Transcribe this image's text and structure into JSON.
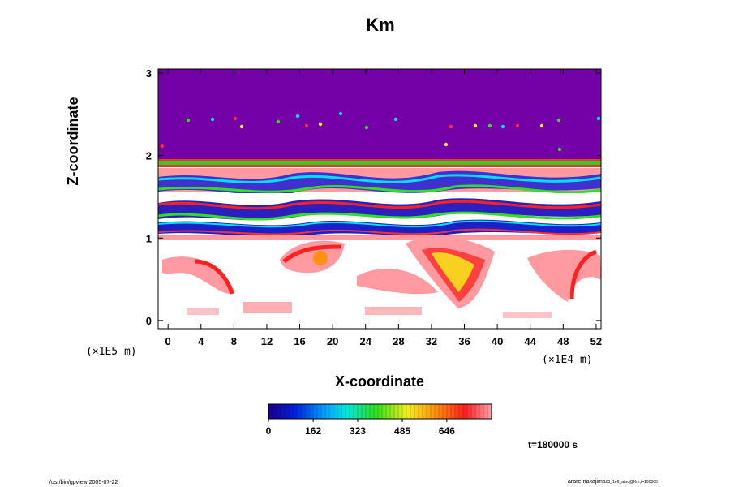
{
  "chart_data": {
    "type": "heatmap",
    "title": "Km",
    "xlabel": "X-coordinate",
    "ylabel": "Z-coordinate",
    "x_unit": "(×1E4 m)",
    "y_unit": "(×1E5 m)",
    "x_ticks": [
      0,
      4,
      8,
      12,
      16,
      20,
      24,
      28,
      32,
      36,
      40,
      44,
      48,
      52
    ],
    "y_ticks": [
      0,
      1,
      2,
      3
    ],
    "xlim": [
      -1.2,
      52.6
    ],
    "ylim": [
      -0.1,
      3.05
    ],
    "colorbar": {
      "ticks": [
        0,
        162,
        323,
        485,
        646
      ],
      "range": [
        0,
        808
      ]
    },
    "time_label": "t=180000 s",
    "colors": {
      "background_field": "#7400a8",
      "low": "#1c008c",
      "mid_blue": "#0034ff",
      "cyan": "#00e0f0",
      "green": "#30e020",
      "yellow": "#f8f020",
      "orange": "#ff9010",
      "red": "#ff2020",
      "pink": "#ff9aa0"
    }
  },
  "footer": {
    "left": "/usr/bin/gpview 2005-07-22",
    "right_main": "arare-nakajima",
    "right_sub": "03_1e6_attrc@Km,t=180000"
  }
}
